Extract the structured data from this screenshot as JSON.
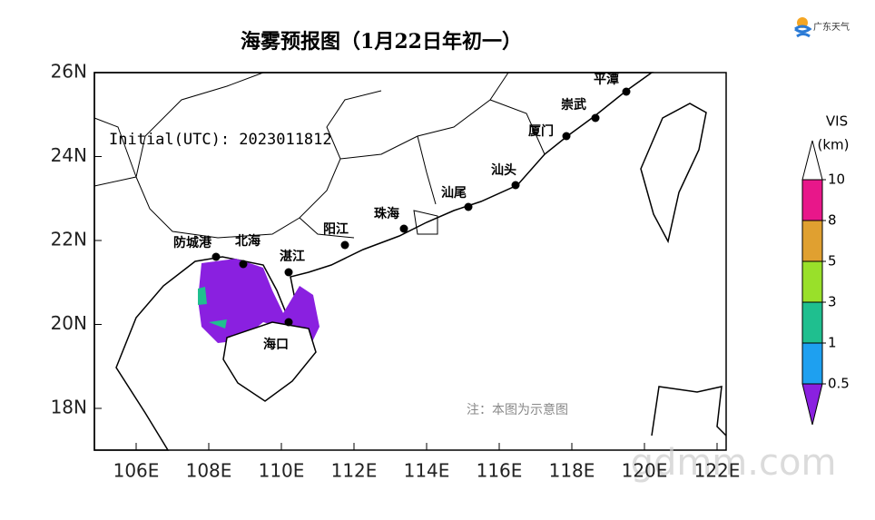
{
  "title": "海雾预报图（1月22日年初一）",
  "logo": "广东天气",
  "initial": "Initial(UTC): 2023011812",
  "note": "注：本图为示意图",
  "watermark": "gdmm.com",
  "lat_ticks": [
    "26N",
    "24N",
    "22N",
    "20N",
    "18N"
  ],
  "lon_ticks": [
    "106E",
    "108E",
    "110E",
    "112E",
    "114E",
    "116E",
    "118E",
    "120E",
    "122E"
  ],
  "cities": [
    "防城港",
    "北海",
    "湛江",
    "阳江",
    "珠海",
    "汕尾",
    "汕头",
    "厦门",
    "崇武",
    "平潭",
    "海口"
  ],
  "colorbar": {
    "title": "VIS",
    "unit": "(km)",
    "labels": [
      "10",
      "8",
      "5",
      "3",
      "1",
      "0.5"
    ]
  }
}
